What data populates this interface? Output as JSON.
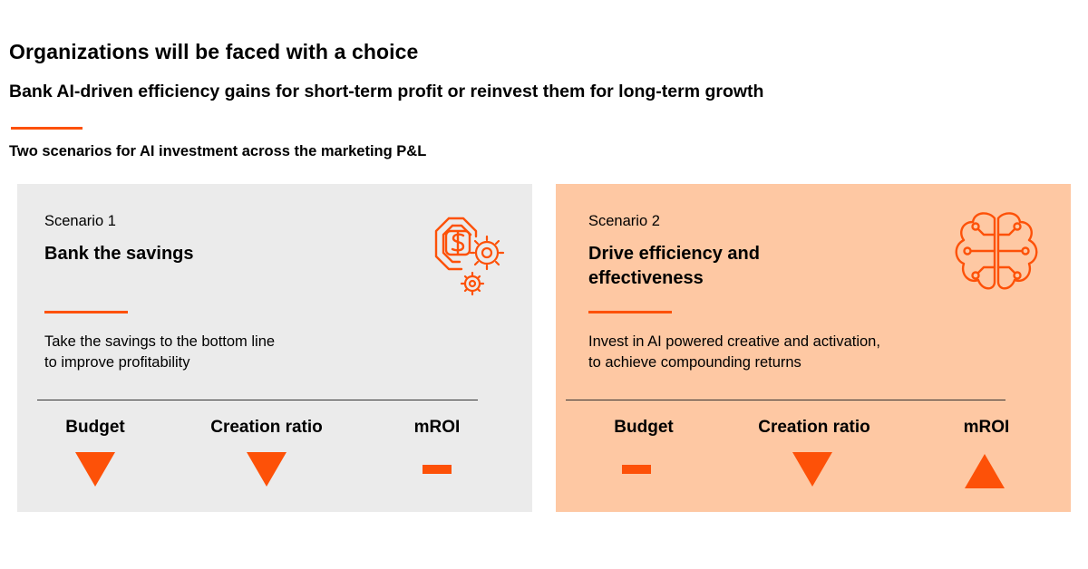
{
  "header": {
    "title": "Organizations will be faced with a choice",
    "subtitle": "Bank AI-driven efficiency gains for short-term profit or reinvest them for long-term growth",
    "section_label": "Two scenarios for AI investment across the marketing P&L"
  },
  "colors": {
    "accent": "#fd5108",
    "panel1_bg": "#ebebeb",
    "panel2_bg": "#fec8a3"
  },
  "scenarios": [
    {
      "number": "Scenario 1",
      "title": "Bank the savings",
      "description_line1": "Take the savings to the bottom line",
      "description_line2": "to improve profitability",
      "icon": "dollar-gears-icon",
      "metrics": [
        {
          "label": "Budget",
          "direction": "down"
        },
        {
          "label": "Creation ratio",
          "direction": "down"
        },
        {
          "label": "mROI",
          "direction": "flat"
        }
      ]
    },
    {
      "number": "Scenario 2",
      "title": "Drive efficiency and effectiveness",
      "description_line1": "Invest in AI powered creative and activation,",
      "description_line2": "to achieve compounding returns",
      "icon": "ai-brain-icon",
      "metrics": [
        {
          "label": "Budget",
          "direction": "flat"
        },
        {
          "label": "Creation ratio",
          "direction": "down"
        },
        {
          "label": "mROI",
          "direction": "up"
        }
      ]
    }
  ]
}
